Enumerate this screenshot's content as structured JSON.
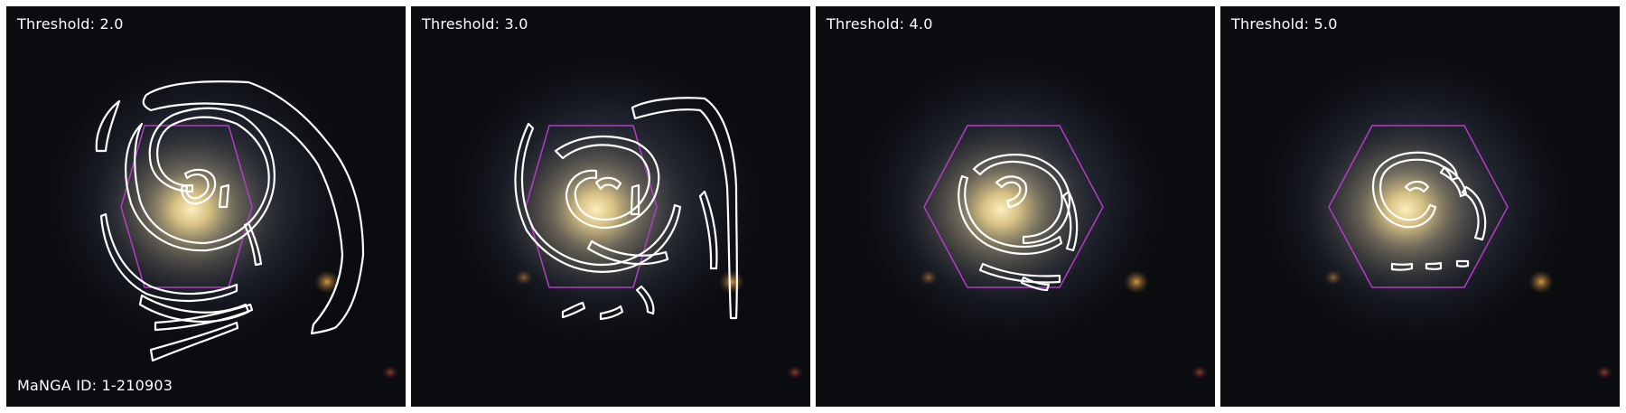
{
  "panels": [
    {
      "label": "Threshold: 2.0"
    },
    {
      "label": "Threshold: 3.0"
    },
    {
      "label": "Threshold: 4.0"
    },
    {
      "label": "Threshold: 5.0"
    }
  ],
  "galaxy": {
    "manga_id_label": "MaNGA ID: 1-210903"
  },
  "colors": {
    "contour": "#ffffff",
    "hexagon": "#b43cc8",
    "background": "#0b0c10",
    "core": "#f5dc96",
    "disk": "#7f8da8",
    "companion": "#c8963c"
  }
}
